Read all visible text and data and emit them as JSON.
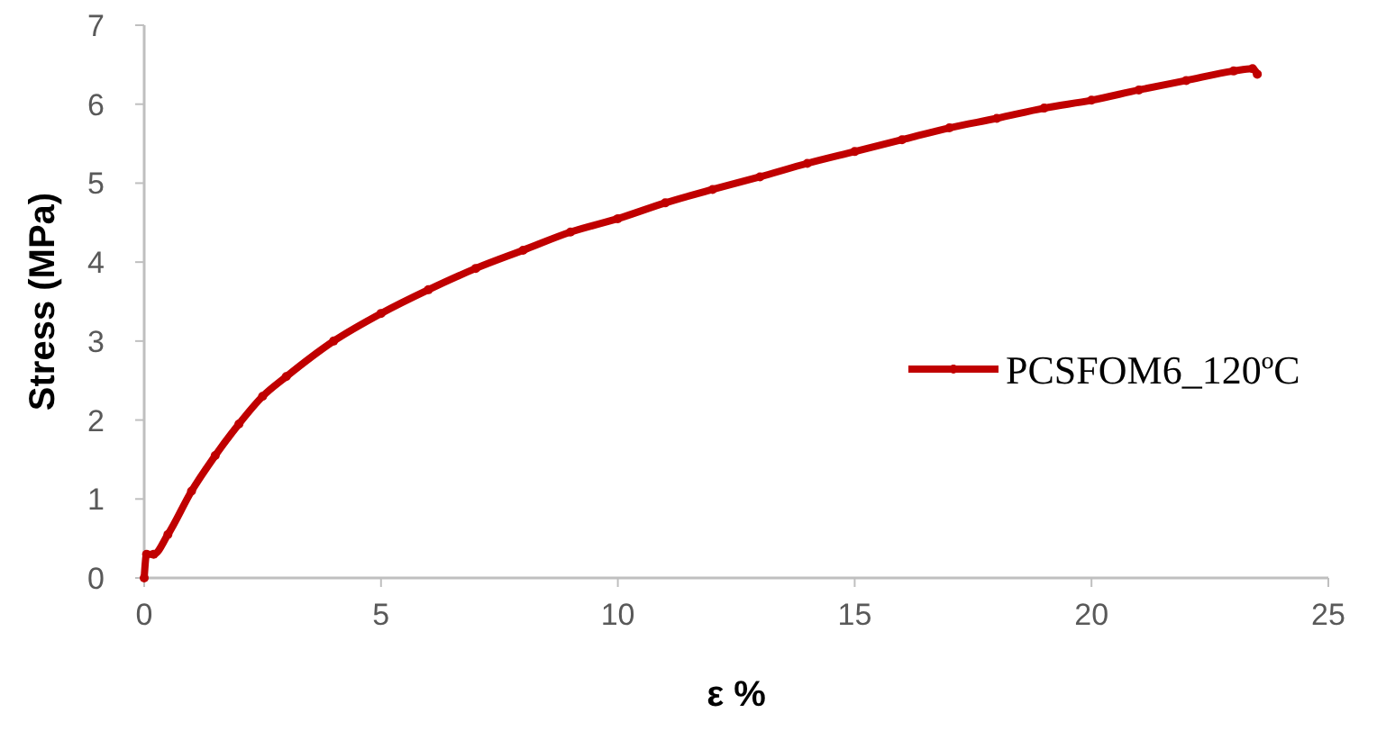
{
  "chart_data": {
    "type": "line",
    "xlabel": "ε %",
    "ylabel": "Stress (MPa)",
    "xlim": [
      0,
      25
    ],
    "xticks": [
      0,
      5,
      10,
      15,
      20,
      25
    ],
    "ylim": [
      0,
      7
    ],
    "yticks": [
      0,
      1,
      2,
      3,
      4,
      5,
      6,
      7
    ],
    "grid": false,
    "legend": "right",
    "marker": "circle",
    "series": [
      {
        "name": "PCSFOM6_120ºC",
        "color": "#c00000",
        "x": [
          0,
          0.05,
          0.2,
          0.5,
          1,
          1.5,
          2,
          2.5,
          3,
          4,
          5,
          6,
          7,
          8,
          9,
          10,
          11,
          12,
          13,
          14,
          15,
          16,
          17,
          18,
          19,
          20,
          21,
          22,
          23,
          23.4,
          23.5
        ],
        "values": [
          0,
          0.3,
          0.3,
          0.55,
          1.1,
          1.55,
          1.95,
          2.3,
          2.55,
          3.0,
          3.35,
          3.65,
          3.92,
          4.15,
          4.38,
          4.55,
          4.75,
          4.92,
          5.08,
          5.25,
          5.4,
          5.55,
          5.7,
          5.82,
          5.95,
          6.05,
          6.18,
          6.3,
          6.42,
          6.45,
          6.38
        ]
      }
    ]
  }
}
